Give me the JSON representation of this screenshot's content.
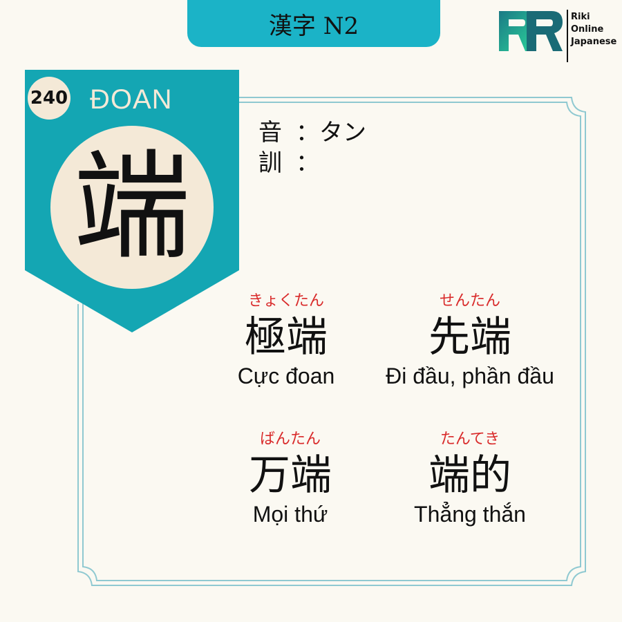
{
  "header": {
    "title": "漢字 N2"
  },
  "logo": {
    "lines": [
      "Riki",
      "Online",
      "Japanese"
    ]
  },
  "kanji": {
    "number": "240",
    "han_viet": "ĐOAN",
    "character": "端"
  },
  "readings": {
    "on": {
      "label": "音",
      "sep": "：",
      "value": "タン"
    },
    "kun": {
      "label": "訓",
      "sep": "：",
      "value": ""
    }
  },
  "vocab": [
    {
      "furigana": "きょくたん",
      "word": "極端",
      "meaning": "Cực đoan"
    },
    {
      "furigana": "せんたん",
      "word": "先端",
      "meaning": "Đi đầu, phần đầu"
    },
    {
      "furigana": "ばんたん",
      "word": "万端",
      "meaning": "Mọi thứ"
    },
    {
      "furigana": "たんてき",
      "word": "端的",
      "meaning": "Thẳng thắn"
    }
  ],
  "colors": {
    "teal": "#1bb3c7",
    "badge_teal": "#14a6b3",
    "cream": "#f4e9d7",
    "furigana_red": "#d92b2b",
    "frame": "#8fc9d1"
  }
}
